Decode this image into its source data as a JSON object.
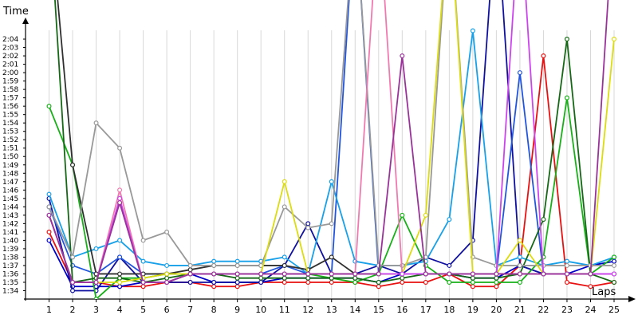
{
  "chart_data": {
    "type": "line",
    "ylabel": "Time",
    "xlabel": "Laps",
    "xlim": [
      0,
      25
    ],
    "ylim": [
      "1:33",
      "2:06"
    ],
    "grid": "vertical",
    "y_ticks": [
      "1:34",
      "1:35",
      "1:36",
      "1:37",
      "1:38",
      "1:39",
      "1:40",
      "1:41",
      "1:42",
      "1:43",
      "1:44",
      "1:45",
      "1:46",
      "1:47",
      "1:48",
      "1:49",
      "1:50",
      "1:51",
      "1:52",
      "1:53",
      "1:54",
      "1:55",
      "1:56",
      "1:57",
      "1:58",
      "1:59",
      "2:00",
      "2:01",
      "2:02",
      "2:03",
      "2:04"
    ],
    "x_ticks": [
      "1",
      "2",
      "3",
      "4",
      "5",
      "6",
      "7",
      "8",
      "9",
      "10",
      "11",
      "12",
      "13",
      "14",
      "15",
      "16",
      "17",
      "18",
      "19",
      "20",
      "21",
      "22",
      "23",
      "24",
      "25"
    ],
    "x": [
      1,
      2,
      3,
      4,
      5,
      6,
      7,
      8,
      9,
      10,
      11,
      12,
      13,
      14,
      15,
      16,
      17,
      18,
      19,
      20,
      21,
      22,
      23,
      24,
      25
    ],
    "series": [
      {
        "color": "#e81010",
        "values": [
          "1:41",
          "1:35",
          "1:35",
          "1:34.5",
          "1:34.5",
          "1:35",
          "1:35",
          "1:34.5",
          "1:34.5",
          "1:35",
          "1:35",
          "1:35",
          "1:35",
          "1:35",
          "1:34.5",
          "1:35",
          "1:35",
          "1:36",
          "1:34.5",
          "1:34.5",
          "1:37",
          "2:02",
          "1:35",
          "1:34.5",
          "1:35"
        ]
      },
      {
        "color": "#0000c8",
        "values": [
          "1:40",
          "1:34.5",
          "1:34.5",
          "1:34.5",
          "1:35",
          "1:35",
          "1:36",
          "1:35",
          "1:35",
          "1:35",
          "1:35.5",
          "1:35.5",
          "1:35.5",
          "1:35.5",
          "1:35",
          "1:36",
          "1:36",
          "1:36",
          "1:35.5",
          "1:35.5",
          "1:37",
          "1:36",
          "1:36",
          "1:37",
          "1:37.5"
        ]
      },
      {
        "color": "#1010a0",
        "values": [
          "1:45",
          "1:34",
          "1:34",
          "1:38",
          "1:35",
          "1:35",
          "1:35",
          "1:35",
          "1:35",
          "1:35",
          "1:37",
          "1:42",
          "1:36",
          "1:36",
          "1:37",
          "1:36",
          "1:38",
          "1:37",
          "1:40",
          "2:20",
          "1:37",
          "1:36",
          "1:36",
          "1:36",
          "1:36"
        ]
      },
      {
        "color": "#2255dd",
        "values": [
          "1:44",
          "1:37",
          "1:36",
          "1:38",
          "1:36",
          "1:36",
          "1:36",
          "1:36",
          "1:36",
          "1:36",
          "1:37",
          "1:36",
          "1:36",
          "2:20",
          "1:36",
          "1:36",
          "1:36",
          "1:36",
          "1:36",
          "1:36",
          "2:00",
          "1:36",
          "1:36",
          "1:36",
          "1:36"
        ]
      },
      {
        "color": "#18a0e8",
        "values": [
          "1:45.5",
          "1:38",
          "1:39",
          "1:40",
          "1:37.5",
          "1:37",
          "1:37",
          "1:37.5",
          "1:37.5",
          "1:37.5",
          "1:38",
          "1:36",
          "1:47",
          "1:37.5",
          "1:37",
          "1:37",
          "1:37.5",
          "1:42.5",
          "2:05",
          "1:37",
          "1:38",
          "1:37",
          "1:37.5",
          "1:37",
          "1:38"
        ]
      },
      {
        "color": "#18b018",
        "values": [
          "1:56",
          "1:49",
          "1:33",
          "1:35.5",
          "1:35.5",
          "1:36",
          "1:36",
          "1:36",
          "1:36",
          "1:36",
          "1:36",
          "1:36",
          "1:35.5",
          "1:35",
          "1:36",
          "1:43",
          "1:37",
          "1:35",
          "1:35",
          "1:35",
          "1:35",
          "1:38",
          "1:57",
          "1:36",
          "1:38"
        ]
      },
      {
        "color": "#156815",
        "values": [
          "2:20",
          "1:35",
          "1:35.5",
          "1:35.5",
          "1:35",
          "1:35.5",
          "1:36",
          "1:36",
          "1:35.5",
          "1:35.5",
          "1:35.5",
          "1:35.5",
          "1:35.5",
          "1:35.5",
          "1:35",
          "1:35.5",
          "1:36",
          "1:36",
          "1:35.5",
          "1:35.5",
          "1:36",
          "1:42.5",
          "2:04",
          "1:36",
          "1:35"
        ]
      },
      {
        "color": "#303030",
        "values": [
          "2:20",
          "1:49",
          "1:36",
          "1:36",
          "1:36",
          "1:36",
          "1:36.5",
          "1:37",
          "1:37",
          "1:37",
          "1:37",
          "1:36.5",
          "1:38",
          "1:36",
          "1:36",
          "1:36",
          "1:36",
          "1:36",
          "1:36",
          "1:36",
          "1:36",
          "1:36",
          "1:36",
          "1:36",
          "1:36"
        ]
      },
      {
        "color": "#999999",
        "values": [
          "1:44",
          "1:38",
          "1:54",
          "1:51",
          "1:40",
          "1:41",
          "1:37",
          "1:37",
          "1:37",
          "1:37",
          "1:44",
          "1:41.5",
          "1:42",
          "2:20",
          "1:37",
          "1:37",
          "1:38",
          "2:20",
          "1:38",
          "1:37",
          "1:37",
          "1:37",
          "1:37",
          "1:37",
          "1:37"
        ]
      },
      {
        "color": "#dcdc10",
        "values": [
          "1:43",
          "1:35",
          "1:35",
          "1:35",
          "1:35.5",
          "1:36",
          "1:36",
          "1:36",
          "1:36",
          "1:36",
          "1:47",
          "1:36",
          "1:36",
          "1:36",
          "1:36",
          "1:36",
          "1:43",
          "2:20",
          "1:36",
          "1:36",
          "1:40",
          "1:36",
          "1:36",
          "1:36",
          "2:04"
        ]
      },
      {
        "color": "#f07ab0",
        "values": [
          "1:43",
          "1:35",
          "1:35",
          "1:46",
          "1:35",
          "1:35",
          "1:36",
          "1:36",
          "1:36",
          "1:36",
          "1:36",
          "1:36",
          "1:36",
          "1:36",
          "2:20",
          "1:36",
          "1:36",
          "1:36",
          "1:36",
          "1:36",
          "1:36",
          "1:36",
          "1:36",
          "1:36",
          "1:36"
        ]
      },
      {
        "color": "#cc44ee",
        "values": [
          "1:43",
          "1:35",
          "1:35",
          "1:45",
          "1:35",
          "1:35",
          "1:36",
          "1:36",
          "1:36",
          "1:36",
          "1:36",
          "1:36",
          "1:36",
          "1:36",
          "1:36",
          "1:36",
          "1:36",
          "1:36",
          "1:36",
          "1:36",
          "2:20",
          "1:36",
          "1:36",
          "1:36",
          "1:36"
        ]
      },
      {
        "color": "#993399",
        "values": [
          "1:43",
          "1:35",
          "1:35",
          "1:44.5",
          "1:35",
          "1:35",
          "1:36",
          "1:36",
          "1:36",
          "1:36",
          "1:36",
          "1:36",
          "1:36",
          "1:36",
          "1:36",
          "2:02",
          "1:36",
          "1:36",
          "1:36",
          "1:36",
          "1:36",
          "1:36",
          "1:36",
          "1:36",
          "2:20"
        ]
      }
    ]
  }
}
